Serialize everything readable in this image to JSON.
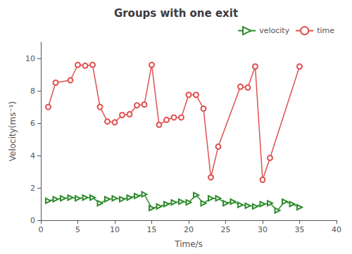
{
  "chart_data": {
    "type": "line",
    "title": "Groups with one exit",
    "xlabel": "Time/s",
    "ylabel": "Velocity(ms⁻¹)",
    "xlim": [
      0,
      40
    ],
    "ylim": [
      0,
      11
    ],
    "xticks": [
      0,
      5,
      10,
      15,
      20,
      25,
      30,
      35,
      40
    ],
    "yticks": [
      0,
      2,
      4,
      6,
      8,
      10
    ],
    "grid": false,
    "legend": "upper right",
    "series": [
      {
        "name": "velocity",
        "color": "#2e8b2e",
        "marker": "triangle-right",
        "x": [
          1,
          2,
          3,
          4,
          5,
          6,
          7,
          8,
          9,
          10,
          11,
          12,
          13,
          14,
          15,
          16,
          17,
          18,
          19,
          20,
          21,
          22,
          23,
          24,
          25,
          26,
          27,
          28,
          29,
          30,
          31,
          32,
          33,
          34,
          35
        ],
        "values": [
          1.2,
          1.3,
          1.35,
          1.4,
          1.35,
          1.4,
          1.4,
          1.05,
          1.3,
          1.35,
          1.3,
          1.4,
          1.5,
          1.6,
          0.75,
          0.85,
          1.0,
          1.1,
          1.15,
          1.1,
          1.55,
          1.05,
          1.35,
          1.35,
          1.05,
          1.15,
          0.95,
          0.9,
          0.85,
          1.0,
          1.05,
          0.6,
          1.15,
          1.0,
          0.8
        ]
      },
      {
        "name": "time",
        "color": "#e05050",
        "marker": "circle",
        "x": [
          1,
          2,
          4,
          5,
          6,
          7,
          8,
          9,
          10,
          11,
          12,
          13,
          14,
          15,
          16,
          17,
          18,
          19,
          20,
          21,
          22,
          23,
          24,
          27,
          28,
          29,
          30,
          31,
          35
        ],
        "values": [
          7.0,
          8.5,
          8.65,
          9.6,
          9.55,
          9.6,
          7.0,
          6.1,
          6.05,
          6.5,
          6.55,
          7.1,
          7.15,
          9.6,
          5.9,
          6.2,
          6.35,
          6.35,
          7.75,
          7.75,
          6.9,
          2.65,
          4.55,
          8.25,
          8.2,
          9.5,
          2.5,
          3.85,
          9.5
        ]
      }
    ]
  }
}
